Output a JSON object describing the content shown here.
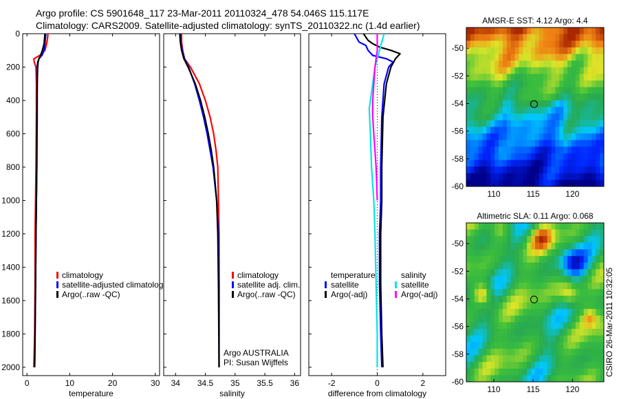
{
  "header": {
    "line1": "Argo profile: CS 5901648_117 23-Mar-2011 20110324_478 54.046S 115.117E",
    "line2": "Climatology: CARS2009. Satellite-adjusted climatology: synTS_20110322.nc (1.4d earlier)"
  },
  "stamp": "CSIRO 26-Mar-2011 10:32:05",
  "colors": {
    "red": "#ff0000",
    "blue": "#0000ff",
    "black": "#000000",
    "cyan": "#00e5e5",
    "magenta": "#ff00ff"
  },
  "chart_data": [
    {
      "type": "line",
      "id": "temperature",
      "xlabel": "temperature",
      "xlim": [
        -1,
        31
      ],
      "ylim": [
        0,
        2050
      ],
      "y_reversed": true,
      "xticks": [
        0,
        10,
        20,
        30
      ],
      "yticks": [
        0,
        200,
        400,
        600,
        800,
        1000,
        1200,
        1400,
        1600,
        1800,
        2000
      ],
      "legend": [
        "climatology",
        "satellite-adjusted climatology",
        "Argo(..raw -QC)"
      ],
      "series": [
        {
          "name": "climatology",
          "color": "red",
          "x": [
            4.9,
            4.8,
            4.6,
            4.2,
            3.0,
            1.6,
            1.7,
            2.1,
            2.2,
            2.2,
            2.1,
            2.0,
            1.9,
            1.9,
            1.8,
            1.6
          ],
          "y": [
            0,
            30,
            60,
            100,
            130,
            150,
            170,
            200,
            300,
            500,
            800,
            1000,
            1200,
            1500,
            1800,
            2000
          ]
        },
        {
          "name": "satellite-adjusted climatology",
          "color": "blue",
          "x": [
            4.4,
            4.3,
            4.2,
            4.0,
            3.5,
            2.8,
            2.5,
            2.4,
            2.4,
            2.4,
            2.3,
            2.2,
            2.1,
            2.0,
            1.9,
            1.8
          ],
          "y": [
            0,
            30,
            60,
            100,
            130,
            150,
            170,
            200,
            300,
            500,
            800,
            1000,
            1200,
            1500,
            1800,
            2000
          ]
        },
        {
          "name": "Argo(..raw -QC)",
          "color": "black",
          "x": [
            4.2,
            4.1,
            4.0,
            3.6,
            3.2,
            2.8,
            2.6,
            2.5,
            2.4,
            2.3,
            2.3,
            2.2,
            2.1,
            2.0,
            1.9,
            1.8
          ],
          "y": [
            0,
            30,
            60,
            100,
            130,
            150,
            170,
            200,
            300,
            500,
            800,
            1000,
            1200,
            1500,
            1800,
            2000
          ]
        }
      ]
    },
    {
      "type": "line",
      "id": "salinity",
      "xlabel": "salinity",
      "xlim": [
        33.8,
        36.1
      ],
      "ylim": [
        0,
        2050
      ],
      "y_reversed": true,
      "xticks": [
        34,
        34.5,
        35,
        35.5,
        36
      ],
      "xtick_labels": [
        "34",
        "34.5",
        "35",
        "35.5",
        "36"
      ],
      "legend": [
        "climatology",
        "satellite adj. clim.",
        "Argo(..raw -QC)"
      ],
      "annotation": [
        "Argo AUSTRALIA",
        "PI: Susan Wijffels"
      ],
      "series": [
        {
          "name": "climatology",
          "color": "red",
          "x": [
            34.1,
            34.1,
            34.12,
            34.15,
            34.25,
            34.4,
            34.5,
            34.58,
            34.64,
            34.68,
            34.71,
            34.72,
            34.73,
            34.73,
            34.73
          ],
          "y": [
            0,
            50,
            100,
            150,
            200,
            300,
            400,
            500,
            600,
            700,
            800,
            1000,
            1200,
            1500,
            2000
          ]
        },
        {
          "name": "satellite adj. clim.",
          "color": "blue",
          "x": [
            34.08,
            34.09,
            34.11,
            34.15,
            34.22,
            34.32,
            34.4,
            34.47,
            34.53,
            34.58,
            34.63,
            34.69,
            34.72,
            34.73,
            34.73
          ],
          "y": [
            0,
            50,
            100,
            150,
            200,
            300,
            400,
            500,
            600,
            700,
            800,
            1000,
            1200,
            1500,
            2000
          ]
        },
        {
          "name": "Argo(..raw -QC)",
          "color": "black",
          "x": [
            34.07,
            34.08,
            34.1,
            34.14,
            34.21,
            34.33,
            34.42,
            34.49,
            34.55,
            34.6,
            34.64,
            34.69,
            34.71,
            34.72,
            34.73
          ],
          "y": [
            0,
            50,
            100,
            150,
            200,
            300,
            400,
            500,
            600,
            700,
            800,
            1000,
            1200,
            1500,
            2000
          ]
        }
      ]
    },
    {
      "type": "line",
      "id": "difference",
      "xlabel": "difference from climatology",
      "xlim": [
        -3,
        3
      ],
      "ylim": [
        0,
        2050
      ],
      "y_reversed": true,
      "xticks": [
        -2,
        0,
        2
      ],
      "zero_line": true,
      "legend_groups": [
        {
          "title": "temperature",
          "entries": [
            "satellite",
            "Argo(-adj)"
          ]
        },
        {
          "title": "salinity",
          "entries": [
            "satellite",
            "Argo(-adj)"
          ]
        }
      ],
      "series": [
        {
          "name": "temperature satellite",
          "color": "blue",
          "x": [
            -1.0,
            -0.8,
            -0.5,
            -0.4,
            -0.2,
            0.4,
            0.7,
            0.5,
            0.3,
            0.2,
            0.15,
            0.15,
            0.1,
            0.1,
            0.15,
            0.2
          ],
          "y": [
            0,
            50,
            70,
            100,
            130,
            150,
            170,
            200,
            300,
            500,
            800,
            1000,
            1200,
            1500,
            1800,
            2000
          ]
        },
        {
          "name": "temperature Argo(-adj)",
          "color": "black",
          "x": [
            -0.6,
            -0.4,
            -0.2,
            0.1,
            0.6,
            1.0,
            0.8,
            0.6,
            0.4,
            0.25,
            0.2,
            0.2,
            0.15,
            0.15,
            0.2,
            0.25
          ],
          "y": [
            0,
            40,
            60,
            80,
            100,
            120,
            150,
            200,
            300,
            500,
            800,
            1000,
            1200,
            1500,
            1800,
            2000
          ]
        },
        {
          "name": "salinity satellite",
          "color": "cyan",
          "x": [
            0.3,
            0.2,
            0.1,
            0.0,
            -0.1,
            -0.2,
            -0.35,
            -0.3,
            -0.25,
            -0.15,
            -0.1,
            -0.05,
            0.0,
            0.0
          ],
          "y": [
            0,
            50,
            100,
            150,
            200,
            300,
            450,
            600,
            800,
            1000,
            1200,
            1500,
            1800,
            2000
          ]
        },
        {
          "name": "salinity Argo(-adj)",
          "color": "magenta",
          "x": [
            0.0,
            0.0,
            -0.05,
            -0.1,
            -0.15,
            -0.2,
            -0.2,
            -0.15,
            -0.1,
            -0.05,
            -0.02,
            0.0
          ],
          "y": [
            0,
            100,
            150,
            200,
            300,
            400,
            500,
            600,
            700,
            800,
            900,
            1000
          ]
        }
      ]
    },
    {
      "type": "heatmap",
      "id": "sst_map",
      "title": "AMSR-E SST: 4.12 Argo: 4.4",
      "xlim": [
        106.5,
        124
      ],
      "ylim": [
        -60,
        -48.5
      ],
      "xticks": [
        110,
        115,
        120
      ],
      "yticks": [
        -50,
        -52,
        -54,
        -56,
        -58,
        -60
      ],
      "marker": [
        115.117,
        -54.046
      ]
    },
    {
      "type": "heatmap",
      "id": "sla_map",
      "title": "Altimetric SLA: 0.11 Argo: 0.068",
      "xlim": [
        106.5,
        124
      ],
      "ylim": [
        -60,
        -48.5
      ],
      "xticks": [
        110,
        115,
        120
      ],
      "yticks": [
        -50,
        -52,
        -54,
        -56,
        -58,
        -60
      ],
      "marker": [
        115.117,
        -54.046
      ]
    }
  ]
}
